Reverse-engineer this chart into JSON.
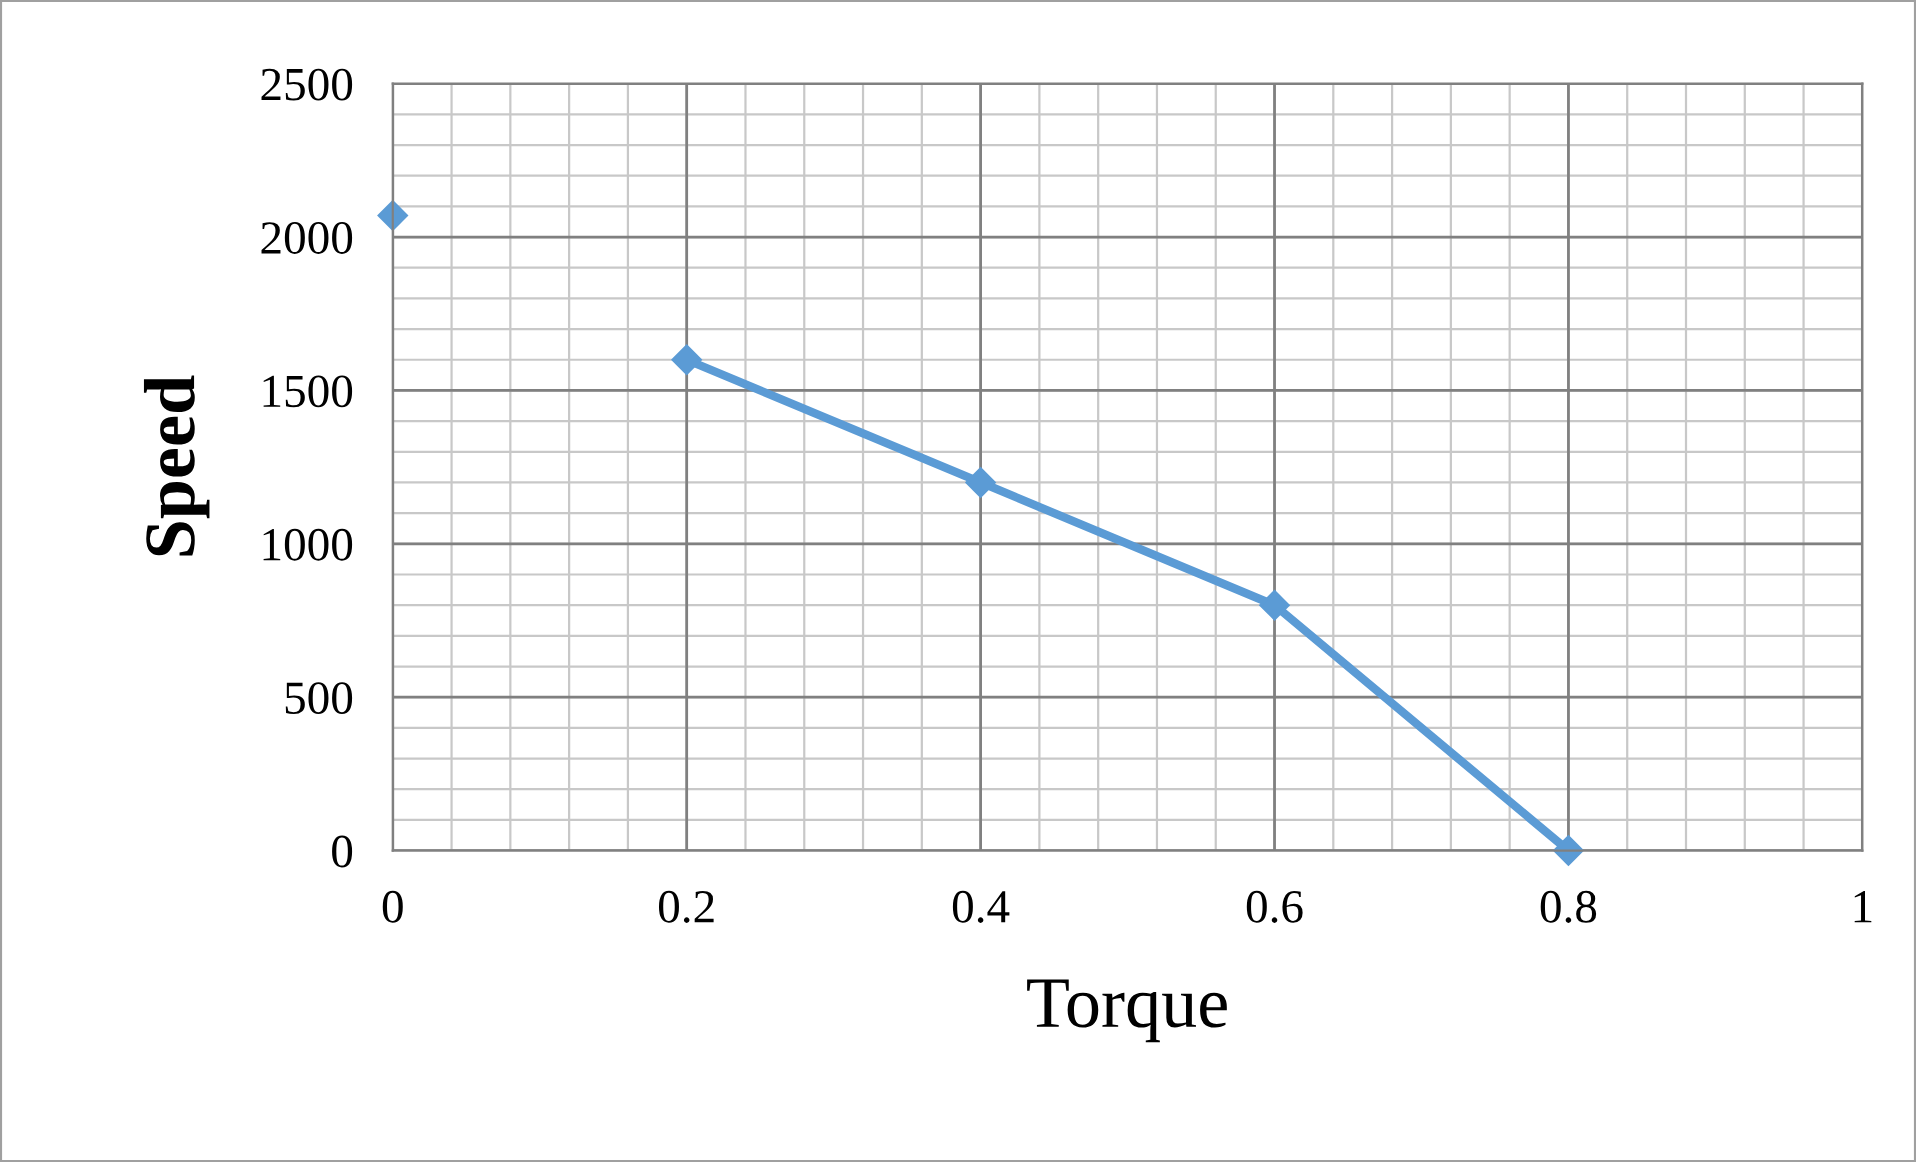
{
  "chart_data": {
    "type": "line",
    "xlabel": "Torque",
    "ylabel": "Speed",
    "x": [
      0,
      0.1,
      0.2,
      0.4,
      0.6,
      0.8
    ],
    "series": [
      {
        "color": "#5b9bd5",
        "values": [
          2070,
          null,
          1600,
          1200,
          800,
          0
        ]
      }
    ],
    "xlim": [
      0,
      1
    ],
    "xticks": [
      0,
      0.2,
      0.4,
      0.6,
      0.8,
      1
    ],
    "ylim": [
      0,
      2500
    ],
    "yticks": [
      0,
      500,
      1000,
      1500,
      2000,
      2500
    ],
    "grid": true,
    "marker": "diamond",
    "line_style": "solid"
  }
}
